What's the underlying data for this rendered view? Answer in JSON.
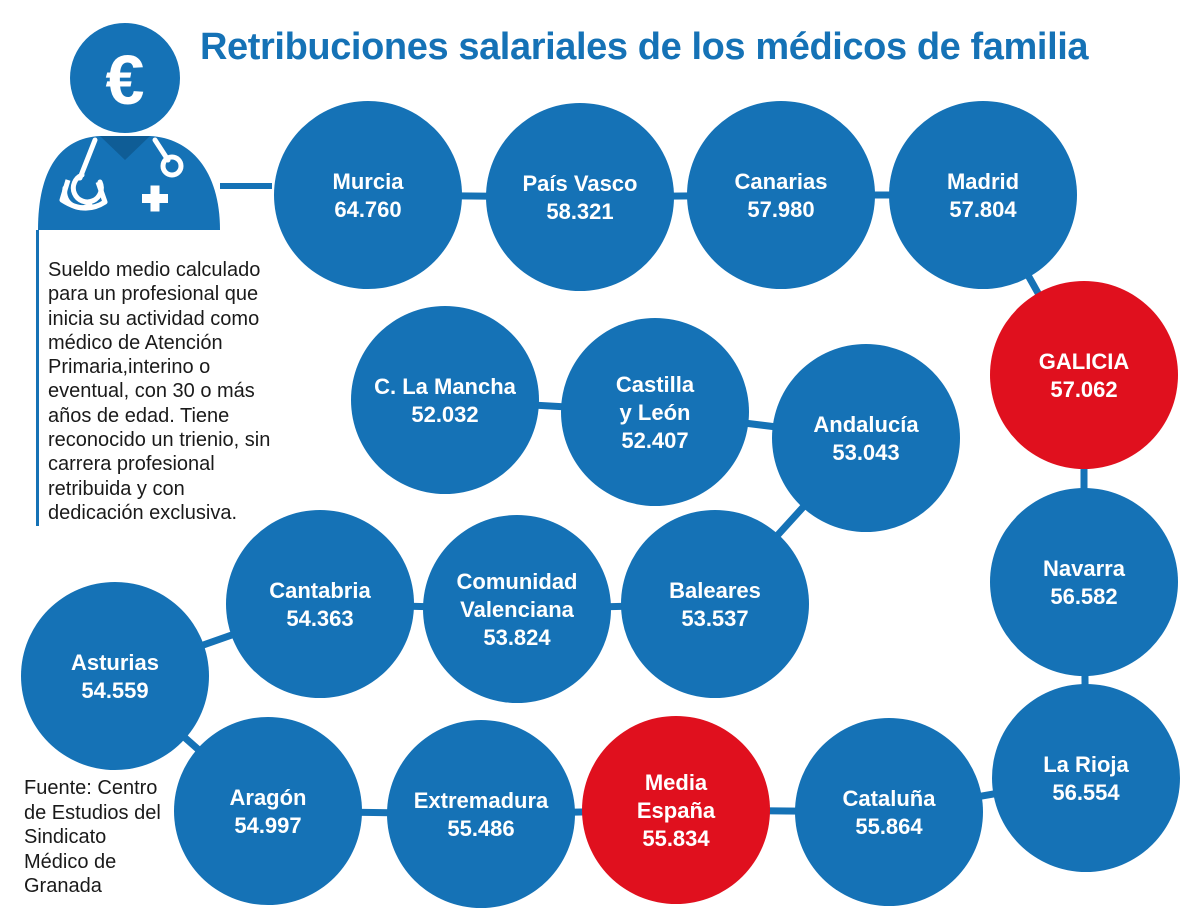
{
  "title": "Retribuciones salariales de los médicos de familia",
  "note": "Sueldo medio calculado para un profesional que inicia su actividad como médico de Atención Primaria,interino o eventual, con 30 o más años de edad. Tiene reconocido un trienio, sin carrera profesional retribuida y con dedicación exclusiva.",
  "source": "Fuente: Centro de Estudios del Sindicato Médico de Granada",
  "icon": {
    "symbol": "€",
    "cross": "+",
    "name": "doctor-euro-icon"
  },
  "colors": {
    "blue": "#1572b6",
    "red": "#e0101e",
    "text": "#1a1a1a",
    "white": "#ffffff"
  },
  "chart_data": {
    "type": "bubble-path",
    "title": "Retribuciones salariales de los médicos de familia",
    "unit": "euros",
    "points": [
      {
        "name": "Murcia",
        "label_lines": [
          "Murcia"
        ],
        "value": 64760,
        "value_label": "64.760",
        "highlight": false
      },
      {
        "name": "País Vasco",
        "label_lines": [
          "País Vasco"
        ],
        "value": 58321,
        "value_label": "58.321",
        "highlight": false
      },
      {
        "name": "Canarias",
        "label_lines": [
          "Canarias"
        ],
        "value": 57980,
        "value_label": "57.980",
        "highlight": false
      },
      {
        "name": "Madrid",
        "label_lines": [
          "Madrid"
        ],
        "value": 57804,
        "value_label": "57.804",
        "highlight": false
      },
      {
        "name": "GALICIA",
        "label_lines": [
          "GALICIA"
        ],
        "value": 57062,
        "value_label": "57.062",
        "highlight": true
      },
      {
        "name": "Navarra",
        "label_lines": [
          "Navarra"
        ],
        "value": 56582,
        "value_label": "56.582",
        "highlight": false
      },
      {
        "name": "La Rioja",
        "label_lines": [
          "La Rioja"
        ],
        "value": 56554,
        "value_label": "56.554",
        "highlight": false
      },
      {
        "name": "Cataluña",
        "label_lines": [
          "Cataluña"
        ],
        "value": 55864,
        "value_label": "55.864",
        "highlight": false
      },
      {
        "name": "Media España",
        "label_lines": [
          "Media",
          "España"
        ],
        "value": 55834,
        "value_label": "55.834",
        "highlight": true
      },
      {
        "name": "Extremadura",
        "label_lines": [
          "Extremadura"
        ],
        "value": 55486,
        "value_label": "55.486",
        "highlight": false
      },
      {
        "name": "Aragón",
        "label_lines": [
          "Aragón"
        ],
        "value": 54997,
        "value_label": "54.997",
        "highlight": false
      },
      {
        "name": "Asturias",
        "label_lines": [
          "Asturias"
        ],
        "value": 54559,
        "value_label": "54.559",
        "highlight": false
      },
      {
        "name": "Cantabria",
        "label_lines": [
          "Cantabria"
        ],
        "value": 54363,
        "value_label": "54.363",
        "highlight": false
      },
      {
        "name": "Comunidad Valenciana",
        "label_lines": [
          "Comunidad",
          "Valenciana"
        ],
        "value": 53824,
        "value_label": "53.824",
        "highlight": false
      },
      {
        "name": "Baleares",
        "label_lines": [
          "Baleares"
        ],
        "value": 53537,
        "value_label": "53.537",
        "highlight": false
      },
      {
        "name": "Andalucía",
        "label_lines": [
          "Andalucía"
        ],
        "value": 53043,
        "value_label": "53.043",
        "highlight": false
      },
      {
        "name": "Castilla y León",
        "label_lines": [
          "Castilla",
          "y León"
        ],
        "value": 52407,
        "value_label": "52.407",
        "highlight": false
      },
      {
        "name": "C. La Mancha",
        "label_lines": [
          "C. La Mancha"
        ],
        "value": 52032,
        "value_label": "52.032",
        "highlight": false
      }
    ]
  }
}
